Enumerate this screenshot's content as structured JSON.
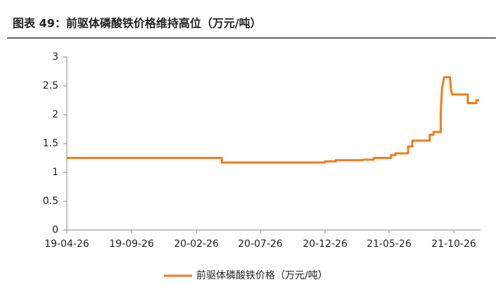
{
  "chart_data": {
    "type": "line",
    "title": "图表 49：前驱体磷酸铁价格维持高位（万元/吨）",
    "x": [
      "19-04-26",
      "20-04-26",
      "20-04-26",
      "20-12-26",
      "20-12-26",
      "21-01-20",
      "21-01-20",
      "21-03-25",
      "21-03-25",
      "21-04-20",
      "21-04-20",
      "21-05-31",
      "21-05-31",
      "21-06-10",
      "21-06-10",
      "21-07-10",
      "21-07-10",
      "21-07-20",
      "21-07-20",
      "21-08-30",
      "21-08-30",
      "21-09-08",
      "21-09-08",
      "21-09-25",
      "21-09-25",
      "21-09-28",
      "21-10-03",
      "21-10-17",
      "21-10-19",
      "21-10-22",
      "21-11-28",
      "21-11-28",
      "21-12-18",
      "21-12-18",
      "21-12-25"
    ],
    "series": [
      {
        "name": "前驱体磷酸铁价格（万元/吨）",
        "color": "#f07c1c",
        "values": [
          1.25,
          1.25,
          1.17,
          1.17,
          1.19,
          1.19,
          1.21,
          1.21,
          1.22,
          1.22,
          1.25,
          1.25,
          1.3,
          1.3,
          1.33,
          1.33,
          1.45,
          1.45,
          1.55,
          1.55,
          1.65,
          1.65,
          1.7,
          1.7,
          2.0,
          2.45,
          2.65,
          2.65,
          2.45,
          2.35,
          2.35,
          2.2,
          2.2,
          2.25,
          2.25
        ]
      }
    ],
    "xlim": [
      "19-04-26",
      "21-12-28"
    ],
    "xticks": [
      "19-04-26",
      "19-09-26",
      "20-02-26",
      "20-07-26",
      "20-12-26",
      "21-05-26",
      "21-10-26"
    ],
    "ylim": [
      0,
      3
    ],
    "yticks": [
      0,
      0.5,
      1,
      1.5,
      2,
      2.5,
      3
    ],
    "legend": "bottom"
  }
}
